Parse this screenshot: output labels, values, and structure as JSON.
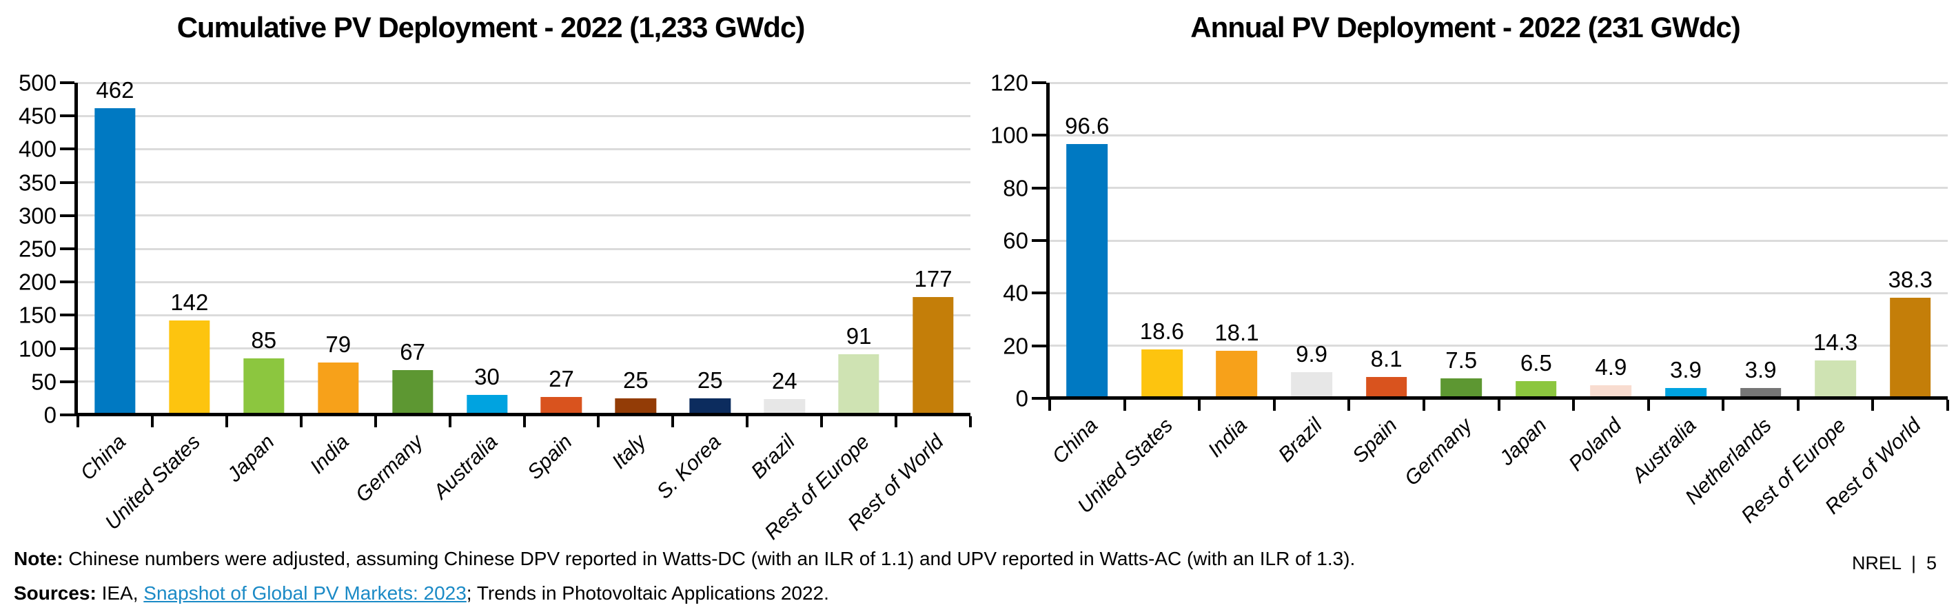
{
  "page": {
    "background": "#FFFFFF"
  },
  "colors": {
    "gridline": "#DBDBDB",
    "axis": "#000000",
    "text": "#000000"
  },
  "chart_data": [
    {
      "type": "bar",
      "title": "Cumulative PV Deployment - 2022 (1,233 GWdc)",
      "xlabel": "",
      "ylabel": "",
      "ylim": [
        0,
        500
      ],
      "ytick_labels": [
        "0",
        "50",
        "100",
        "150",
        "200",
        "250",
        "300",
        "350",
        "400",
        "450",
        "500"
      ],
      "grid": true,
      "legend": "none",
      "categories": [
        "China",
        "United States",
        "Japan",
        "India",
        "Germany",
        "Australia",
        "Spain",
        "Italy",
        "S. Korea",
        "Brazil",
        "Rest of Europe",
        "Rest of World"
      ],
      "values": [
        462,
        142,
        85,
        79,
        67,
        30,
        27,
        25,
        25,
        24,
        91,
        177
      ],
      "value_labels": [
        "462",
        "142",
        "85",
        "79",
        "67",
        "30",
        "27",
        "25",
        "25",
        "24",
        "91",
        "177"
      ],
      "colors": [
        "#0079C2",
        "#FDC40F",
        "#8CC63F",
        "#F7A11A",
        "#5D9732",
        "#00A3E0",
        "#D9531E",
        "#933C06",
        "#0C2C5E",
        "#E7E7E7",
        "#CFE3B3",
        "#C47E09"
      ]
    },
    {
      "type": "bar",
      "title": "Annual PV Deployment - 2022 (231 GWdc)",
      "xlabel": "",
      "ylabel": "",
      "ylim": [
        0,
        120
      ],
      "ytick_labels": [
        "0",
        "20",
        "40",
        "60",
        "80",
        "100",
        "120"
      ],
      "grid": true,
      "legend": "none",
      "categories": [
        "China",
        "United States",
        "India",
        "Brazil",
        "Spain",
        "Germany",
        "Japan",
        "Poland",
        "Australia",
        "Netherlands",
        "Rest of Europe",
        "Rest of World"
      ],
      "values": [
        96.6,
        18.6,
        18.1,
        9.9,
        8.1,
        7.5,
        6.5,
        4.9,
        3.9,
        3.9,
        14.3,
        38.3
      ],
      "value_labels": [
        "96.6",
        "18.6",
        "18.1",
        "9.9",
        "8.1",
        "7.5",
        "6.5",
        "4.9",
        "3.9",
        "3.9",
        "14.3",
        "38.3"
      ],
      "colors": [
        "#0079C2",
        "#FDC40F",
        "#F7A11A",
        "#E7E7E7",
        "#D9531E",
        "#5D9732",
        "#8CC63F",
        "#F8DCD0",
        "#00A3E0",
        "#767676",
        "#CFE3B3",
        "#C47E09"
      ]
    }
  ],
  "footer": {
    "note_label": "Note:",
    "note_text": " Chinese numbers were adjusted, assuming Chinese DPV reported in Watts-DC (with an ILR of 1.1) and UPV reported in Watts-AC (with an ILR of 1.3).",
    "sources_label": "Sources:",
    "sources_before_link": " IEA, ",
    "source_link_text": "Snapshot of Global PV Markets: 2023",
    "sources_after_link": "; Trends in Photovoltaic Applications 2022.",
    "link_color": "#1B8AC6",
    "page_marker": "NREL  |  5"
  }
}
